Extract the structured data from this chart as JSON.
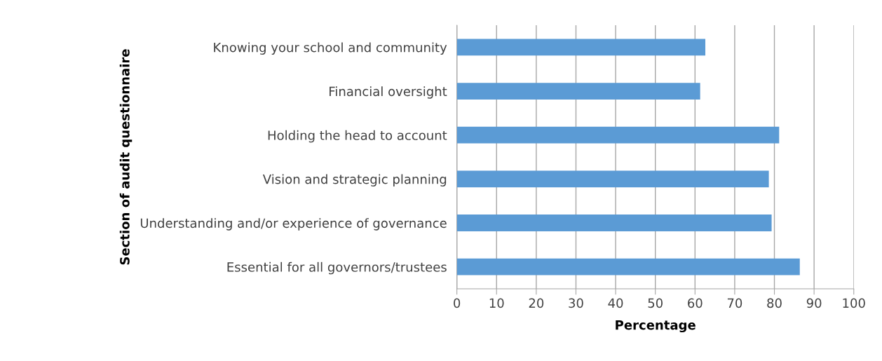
{
  "chart_data": {
    "type": "bar",
    "orientation": "horizontal",
    "categories": [
      "Knowing your school and community",
      "Financial oversight",
      "Holding the head to account",
      "Vision and strategic planning",
      "Understanding and/or experience of governance",
      "Essential for all governors/trustees"
    ],
    "values": [
      62.6,
      61.3,
      81.2,
      78.6,
      79.3,
      86.4
    ],
    "color": "#5b9bd5",
    "xlim": [
      0,
      100
    ],
    "xticks": [
      0,
      10,
      20,
      30,
      40,
      50,
      60,
      70,
      80,
      90,
      100
    ],
    "xlabel": "Percentage",
    "ylabel": "Section of audit questionnaire",
    "grid": "x"
  }
}
